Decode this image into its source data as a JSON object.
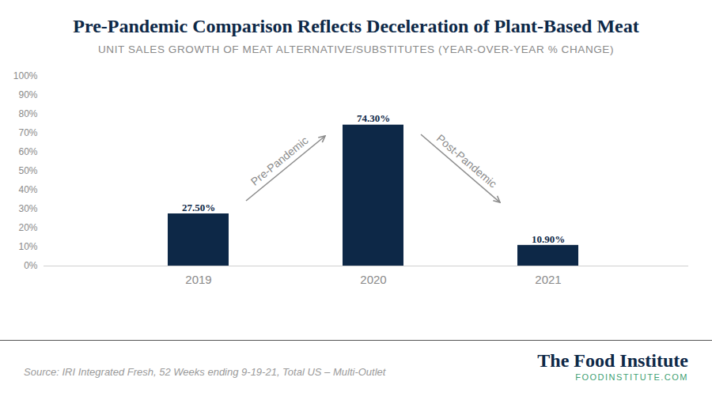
{
  "chart_data": {
    "type": "bar",
    "title": "Pre-Pandemic Comparison Reflects Deceleration of Plant-Based Meat",
    "subtitle": "UNIT SALES GROWTH OF MEAT ALTERNATIVE/SUBSTITUTES (YEAR-OVER-YEAR % CHANGE)",
    "categories": [
      "2019",
      "2020",
      "2021"
    ],
    "values": [
      27.5,
      74.3,
      10.9
    ],
    "value_labels": [
      "27.50%",
      "74.30%",
      "10.90%"
    ],
    "data_labels": true,
    "color": "#0d2847",
    "ylim": [
      0,
      100
    ],
    "yticks": [
      {
        "value": 0,
        "label": "0%"
      },
      {
        "value": 10,
        "label": "10%"
      },
      {
        "value": 20,
        "label": "20%"
      },
      {
        "value": 30,
        "label": "30%"
      },
      {
        "value": 40,
        "label": "40%"
      },
      {
        "value": 50,
        "label": "50%"
      },
      {
        "value": 60,
        "label": "60%"
      },
      {
        "value": 70,
        "label": "70%"
      },
      {
        "value": 80,
        "label": "80%"
      },
      {
        "value": 90,
        "label": "90%"
      },
      {
        "value": 100,
        "label": "100%"
      }
    ],
    "grid": false,
    "annotations": [
      "Pre-Pandemic",
      "Post-Pandemic"
    ],
    "source": "Source: IRI Integrated Fresh, 52 Weeks ending 9-19-21, Total US – Multi-Outlet",
    "logo": {
      "name": "The Food Institute",
      "url": "FOODINSTITUTE.COM"
    }
  }
}
